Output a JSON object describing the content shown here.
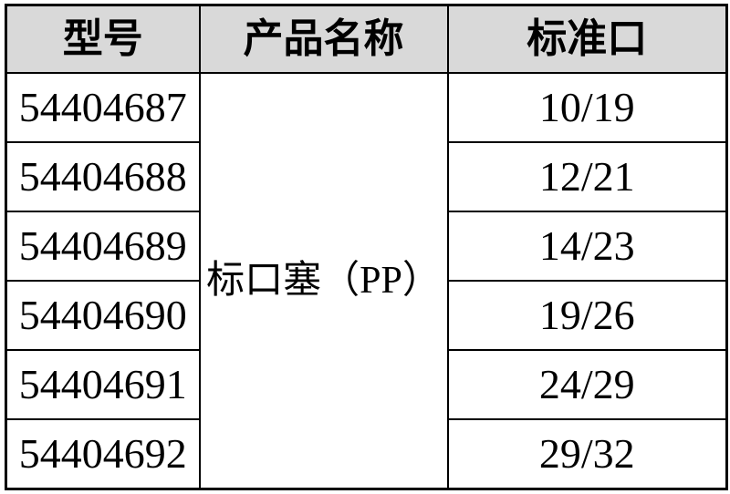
{
  "table": {
    "headers": [
      "型号",
      "产品名称",
      "标准口"
    ],
    "product_name": "标口塞（PP）",
    "rows": [
      {
        "model": "54404687",
        "port": "10/19"
      },
      {
        "model": "54404688",
        "port": "12/21"
      },
      {
        "model": "54404689",
        "port": "14/23"
      },
      {
        "model": "54404690",
        "port": "19/26"
      },
      {
        "model": "54404691",
        "port": "24/29"
      },
      {
        "model": "54404692",
        "port": "29/32"
      }
    ]
  },
  "colors": {
    "header_background": "#d9d9d9",
    "border": "#000000",
    "text": "#000000",
    "page_background": "#ffffff"
  }
}
